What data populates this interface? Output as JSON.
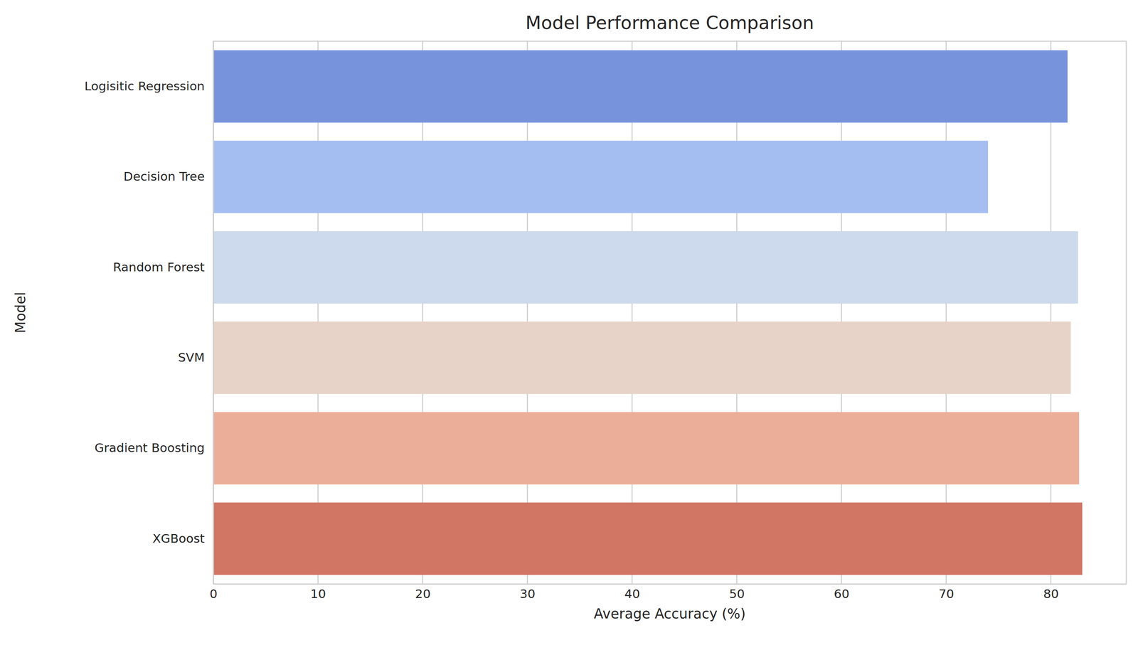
{
  "chart_data": {
    "type": "bar",
    "orientation": "horizontal",
    "title": "Model Performance Comparison",
    "x_label": "Average Accuracy (%)",
    "y_label": "Model",
    "categories": [
      "Logisitic Regression",
      "Decision Tree",
      "Random Forest",
      "SVM",
      "Gradient Boosting",
      "XGBoost"
    ],
    "values": [
      81.6,
      74.0,
      82.6,
      81.9,
      82.7,
      83.0
    ],
    "colors": [
      "#7793dc",
      "#a5bef2",
      "#cdd9ec",
      "#e8d3c8",
      "#ebae98",
      "#d17564"
    ],
    "xlim": [
      0,
      87.2
    ],
    "xticks": [
      0,
      10,
      20,
      30,
      40,
      50,
      60,
      70,
      80
    ],
    "grid": true
  }
}
